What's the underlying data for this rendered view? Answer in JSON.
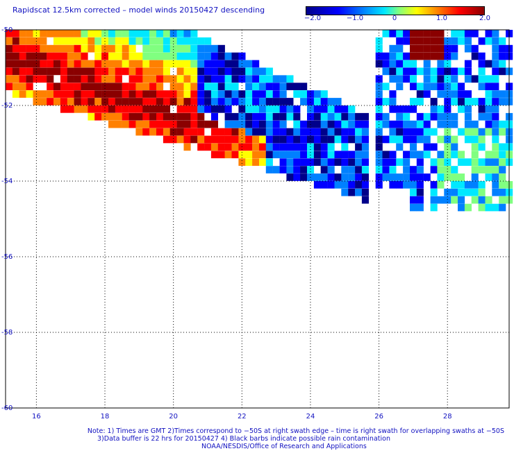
{
  "title": "Rapidscat 12.5km corrected – model winds 20150427 descending",
  "colorbar": {
    "tick_labels": [
      "−2.0",
      "−1.0",
      "0",
      "1.0",
      "2.0"
    ],
    "range": [
      -2.0,
      2.0
    ],
    "colors": [
      "#00008a",
      "#0000ff",
      "#0080ff",
      "#00e8ff",
      "#80ff80",
      "#ffff00",
      "#ff8000",
      "#ff0000",
      "#8a0000"
    ]
  },
  "axes": {
    "lat_labels": [
      "-50",
      "-52",
      "-54",
      "-56",
      "-58",
      "-60"
    ],
    "lon_labels": [
      "16",
      "18",
      "20",
      "22",
      "24",
      "26",
      "28"
    ]
  },
  "chart_data": {
    "type": "heatmap",
    "lat_range": [
      -60,
      -50
    ],
    "lon_range": [
      15.1,
      29.8
    ],
    "color_range": [
      -2.0,
      2.0
    ],
    "regions": [
      {
        "name": "",
        "lat_range": [
          -53.0,
          -50.0
        ],
        "lon_range": [
          15.1,
          22.0
        ],
        "value": 2.0
      },
      {
        "name": "",
        "lat_range": [
          -53.8,
          -51.0
        ],
        "lon_range": [
          19.5,
          25.0
        ],
        "value": -1.2
      },
      {
        "name": "",
        "lat_range": [
          -55.0,
          -50.5
        ],
        "lon_range": [
          25.5,
          29.8
        ],
        "value": -1.5
      }
    ]
  },
  "footer": {
    "line1": "Note: 1) Times are GMT 2)Times correspond to −50S at right swath edge – time is right swath for overlapping swaths at −50S",
    "line2": "3)Data buffer is 22 hrs for 20150427 4) Black barbs indicate possible rain contamination",
    "line3": "NOAA/NESDIS/Office of Research and Applications"
  }
}
